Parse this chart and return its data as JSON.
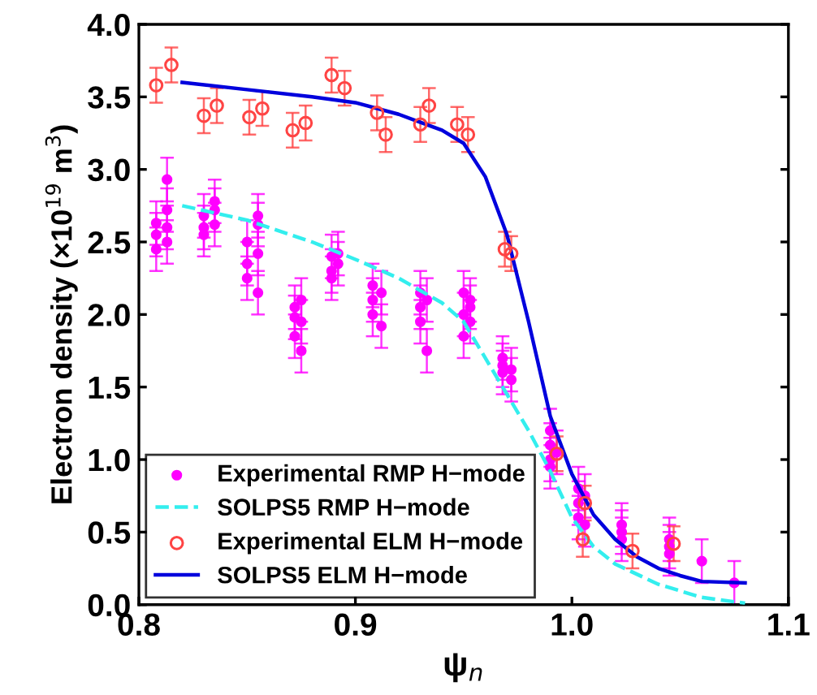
{
  "chart_data": {
    "type": "scatter",
    "xlabel": "ψ$_{n}$",
    "ylabel": "Electron density (×10$^{19}$ m$^{3}$)",
    "xlim": [
      0.8,
      1.1
    ],
    "xticks": [
      0.8,
      0.9,
      {
        "value": 1.0,
        "label": "1.0"
      },
      1.1
    ],
    "ylim": [
      0.0,
      4.0
    ],
    "yticks": [
      {
        "value": 0,
        "label": "0.0"
      },
      0.5,
      {
        "value": 1,
        "label": "1.0"
      },
      1.5,
      {
        "value": 2,
        "label": "2.0"
      },
      2.5,
      {
        "value": 3,
        "label": "3.0"
      },
      3.5,
      {
        "value": 4,
        "label": "4.0"
      }
    ],
    "grid": false,
    "legend": "bottom left",
    "series": [
      {
        "name": "Experimental RMP H−mode",
        "marker": "circle",
        "color": "#ff00ff",
        "x": [
          0.808,
          0.808,
          0.808,
          0.813,
          0.813,
          0.813,
          0.813,
          0.83,
          0.83,
          0.83,
          0.835,
          0.835,
          0.835,
          0.85,
          0.85,
          0.85,
          0.855,
          0.855,
          0.855,
          0.855,
          0.872,
          0.872,
          0.872,
          0.875,
          0.875,
          0.875,
          0.889,
          0.889,
          0.889,
          0.892,
          0.892,
          0.908,
          0.908,
          0.908,
          0.912,
          0.912,
          0.93,
          0.93,
          0.93,
          0.933,
          0.933,
          0.95,
          0.95,
          0.95,
          0.953,
          0.953,
          0.953,
          0.968,
          0.968,
          0.968,
          0.972,
          0.972,
          0.99,
          0.99,
          0.99,
          0.99,
          0.993,
          1.003,
          1.003,
          1.003,
          1.006,
          1.006,
          1.023,
          1.023,
          1.023,
          1.045,
          1.045,
          1.045,
          1.06,
          1.075
        ],
        "values": [
          2.45,
          2.55,
          2.63,
          2.5,
          2.72,
          2.93,
          2.6,
          2.6,
          2.55,
          2.68,
          2.72,
          2.62,
          2.78,
          2.35,
          2.25,
          2.5,
          2.42,
          2.62,
          2.68,
          2.15,
          1.98,
          1.85,
          2.05,
          1.75,
          1.95,
          2.1,
          2.3,
          2.4,
          2.25,
          2.42,
          2.35,
          2.1,
          2.0,
          2.2,
          2.15,
          1.92,
          2.05,
          2.15,
          1.95,
          2.1,
          1.75,
          2.0,
          2.15,
          1.85,
          1.95,
          2.1,
          2.05,
          1.6,
          1.7,
          1.65,
          1.62,
          1.55,
          1.0,
          1.1,
          1.2,
          0.95,
          1.05,
          0.7,
          0.8,
          0.6,
          0.55,
          0.75,
          0.55,
          0.5,
          0.45,
          0.4,
          0.35,
          0.45,
          0.3,
          0.15
        ],
        "errors": [
          0.15,
          0.15,
          0.15,
          0.15,
          0.15,
          0.15,
          0.15,
          0.15,
          0.15,
          0.15,
          0.15,
          0.15,
          0.15,
          0.15,
          0.15,
          0.15,
          0.15,
          0.15,
          0.15,
          0.15,
          0.15,
          0.15,
          0.15,
          0.15,
          0.15,
          0.15,
          0.15,
          0.15,
          0.15,
          0.15,
          0.15,
          0.15,
          0.15,
          0.15,
          0.15,
          0.15,
          0.15,
          0.15,
          0.15,
          0.15,
          0.15,
          0.15,
          0.15,
          0.15,
          0.15,
          0.15,
          0.15,
          0.15,
          0.15,
          0.15,
          0.15,
          0.15,
          0.15,
          0.15,
          0.15,
          0.15,
          0.15,
          0.15,
          0.15,
          0.15,
          0.15,
          0.15,
          0.15,
          0.15,
          0.15,
          0.15,
          0.15,
          0.15,
          0.15,
          0.15
        ]
      },
      {
        "name": "SOLPS5 RMP H−mode",
        "type": "line",
        "line_style": "dashed",
        "color": "#33eeee",
        "x": [
          0.82,
          0.85,
          0.88,
          0.9,
          0.92,
          0.94,
          0.95,
          0.96,
          0.97,
          0.98,
          0.99,
          1.0,
          1.01,
          1.02,
          1.04,
          1.06,
          1.08
        ],
        "values": [
          2.75,
          2.65,
          2.5,
          2.38,
          2.25,
          2.08,
          1.95,
          1.7,
          1.45,
          1.2,
          0.92,
          0.6,
          0.4,
          0.28,
          0.14,
          0.05,
          0.01
        ]
      },
      {
        "name": "Experimental ELM H−mode",
        "marker": "circle",
        "color": "#ff4444",
        "x": [
          0.808,
          0.815,
          0.83,
          0.836,
          0.851,
          0.857,
          0.871,
          0.877,
          0.889,
          0.895,
          0.91,
          0.914,
          0.93,
          0.934,
          0.947,
          0.952,
          0.969,
          0.972,
          0.993,
          1.006,
          1.005,
          1.028,
          1.047
        ],
        "values": [
          3.58,
          3.72,
          3.37,
          3.44,
          3.36,
          3.42,
          3.27,
          3.32,
          3.65,
          3.56,
          3.39,
          3.24,
          3.31,
          3.44,
          3.31,
          3.24,
          2.45,
          2.42,
          1.04,
          0.7,
          0.45,
          0.37,
          0.42
        ],
        "errors": [
          0.12,
          0.12,
          0.12,
          0.12,
          0.12,
          0.12,
          0.12,
          0.12,
          0.12,
          0.12,
          0.12,
          0.12,
          0.12,
          0.12,
          0.12,
          0.12,
          0.12,
          0.12,
          0.12,
          0.12,
          0.12,
          0.12,
          0.12
        ]
      },
      {
        "name": "SOLPS5 ELM H−mode",
        "type": "line",
        "line_style": "solid",
        "color": "#0000dd",
        "x": [
          0.82,
          0.85,
          0.88,
          0.9,
          0.92,
          0.94,
          0.95,
          0.96,
          0.97,
          0.98,
          0.99,
          1.0,
          1.01,
          1.02,
          1.03,
          1.04,
          1.05,
          1.06,
          1.08
        ],
        "values": [
          3.6,
          3.55,
          3.5,
          3.46,
          3.38,
          3.27,
          3.18,
          2.95,
          2.55,
          1.95,
          1.3,
          0.9,
          0.62,
          0.45,
          0.33,
          0.25,
          0.2,
          0.16,
          0.15
        ]
      }
    ]
  }
}
